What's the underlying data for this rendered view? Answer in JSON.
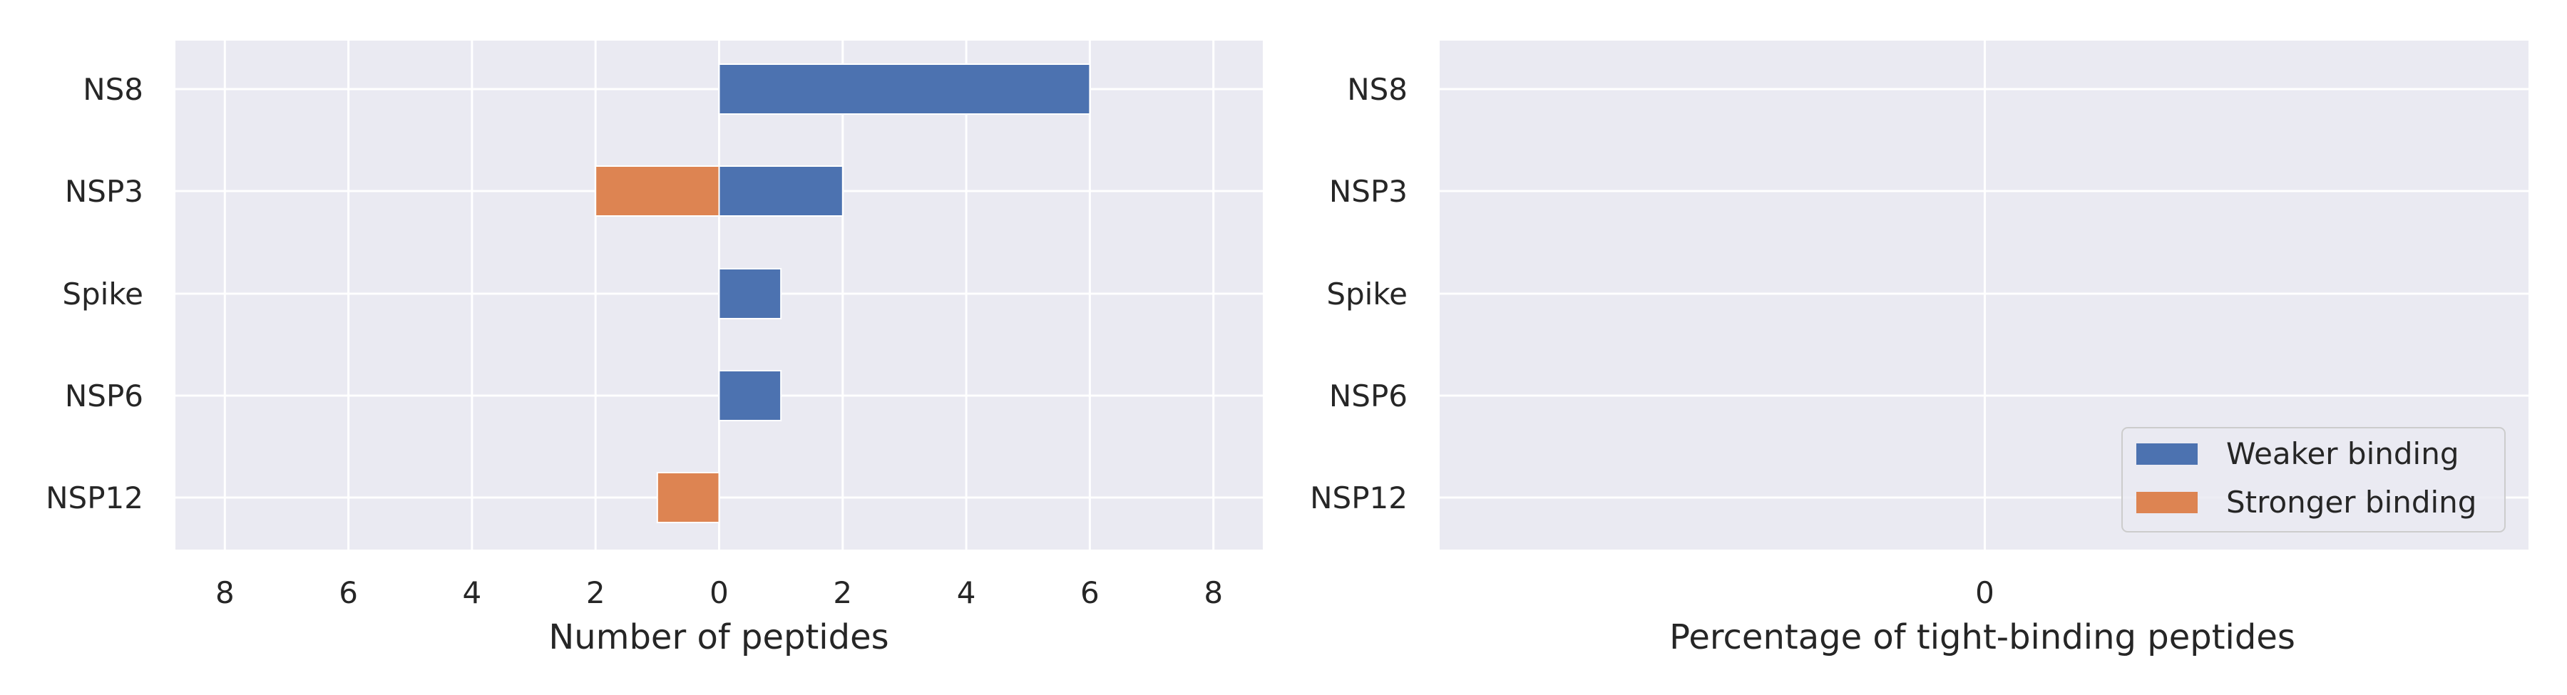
{
  "chart_data": [
    {
      "type": "bar",
      "orientation": "horizontal",
      "categories": [
        "NS8",
        "NSP3",
        "Spike",
        "NSP6",
        "NSP12"
      ],
      "series": [
        {
          "name": "Weaker binding",
          "values": [
            6,
            2,
            1,
            1,
            0
          ],
          "direction": "positive",
          "color": "#4C72B0"
        },
        {
          "name": "Stronger binding",
          "values": [
            0,
            2,
            0,
            0,
            1
          ],
          "direction": "negative",
          "color": "#DD8452"
        }
      ],
      "xlim": [
        -8.8,
        8.8
      ],
      "xticks": [
        -8,
        -6,
        -4,
        -2,
        0,
        2,
        4,
        6,
        8
      ],
      "xtick_labels": [
        "8",
        "6",
        "4",
        "2",
        "0",
        "2",
        "4",
        "6",
        "8"
      ],
      "xlabel": "Number of peptides",
      "ylabel": "",
      "grid": true
    },
    {
      "type": "bar",
      "orientation": "horizontal",
      "categories": [
        "NS8",
        "NSP3",
        "Spike",
        "NSP6",
        "NSP12"
      ],
      "series": [],
      "xticks": [
        0
      ],
      "xtick_labels": [
        "0"
      ],
      "xlabel": "Percentage of tight-binding peptides",
      "ylabel": "",
      "grid": true,
      "legend": {
        "placement": "lower-right",
        "entries": [
          {
            "label": "Weaker binding",
            "color": "#4C72B0"
          },
          {
            "label": "Stronger binding",
            "color": "#DD8452"
          }
        ]
      }
    }
  ]
}
